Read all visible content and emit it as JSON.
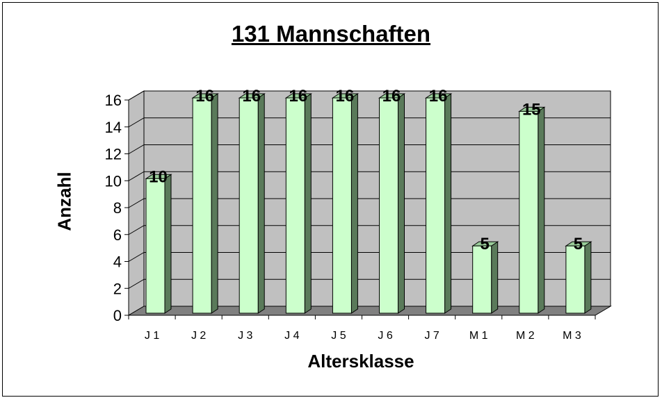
{
  "chart_data": {
    "type": "bar",
    "title": "131 Mannschaften",
    "xlabel": "Altersklasse",
    "ylabel": "Anzahl",
    "categories": [
      "J 1",
      "J 2",
      "J 3",
      "J 4",
      "J 5",
      "J 6",
      "J 7",
      "M 1",
      "M 2",
      "M 3"
    ],
    "values": [
      10,
      16,
      16,
      16,
      16,
      16,
      16,
      5,
      15,
      5
    ],
    "ylim": [
      0,
      16
    ],
    "yticks": [
      0,
      2,
      4,
      6,
      8,
      10,
      12,
      14,
      16
    ],
    "grid": true,
    "legend": "none",
    "data_labels": true,
    "colors": {
      "bar_front": "#ccffcc",
      "bar_side": "#5a7a5a",
      "bar_top": "#99cc99",
      "wall": "#c0c0c0",
      "floor": "#808080",
      "gridline": "#000000"
    }
  }
}
